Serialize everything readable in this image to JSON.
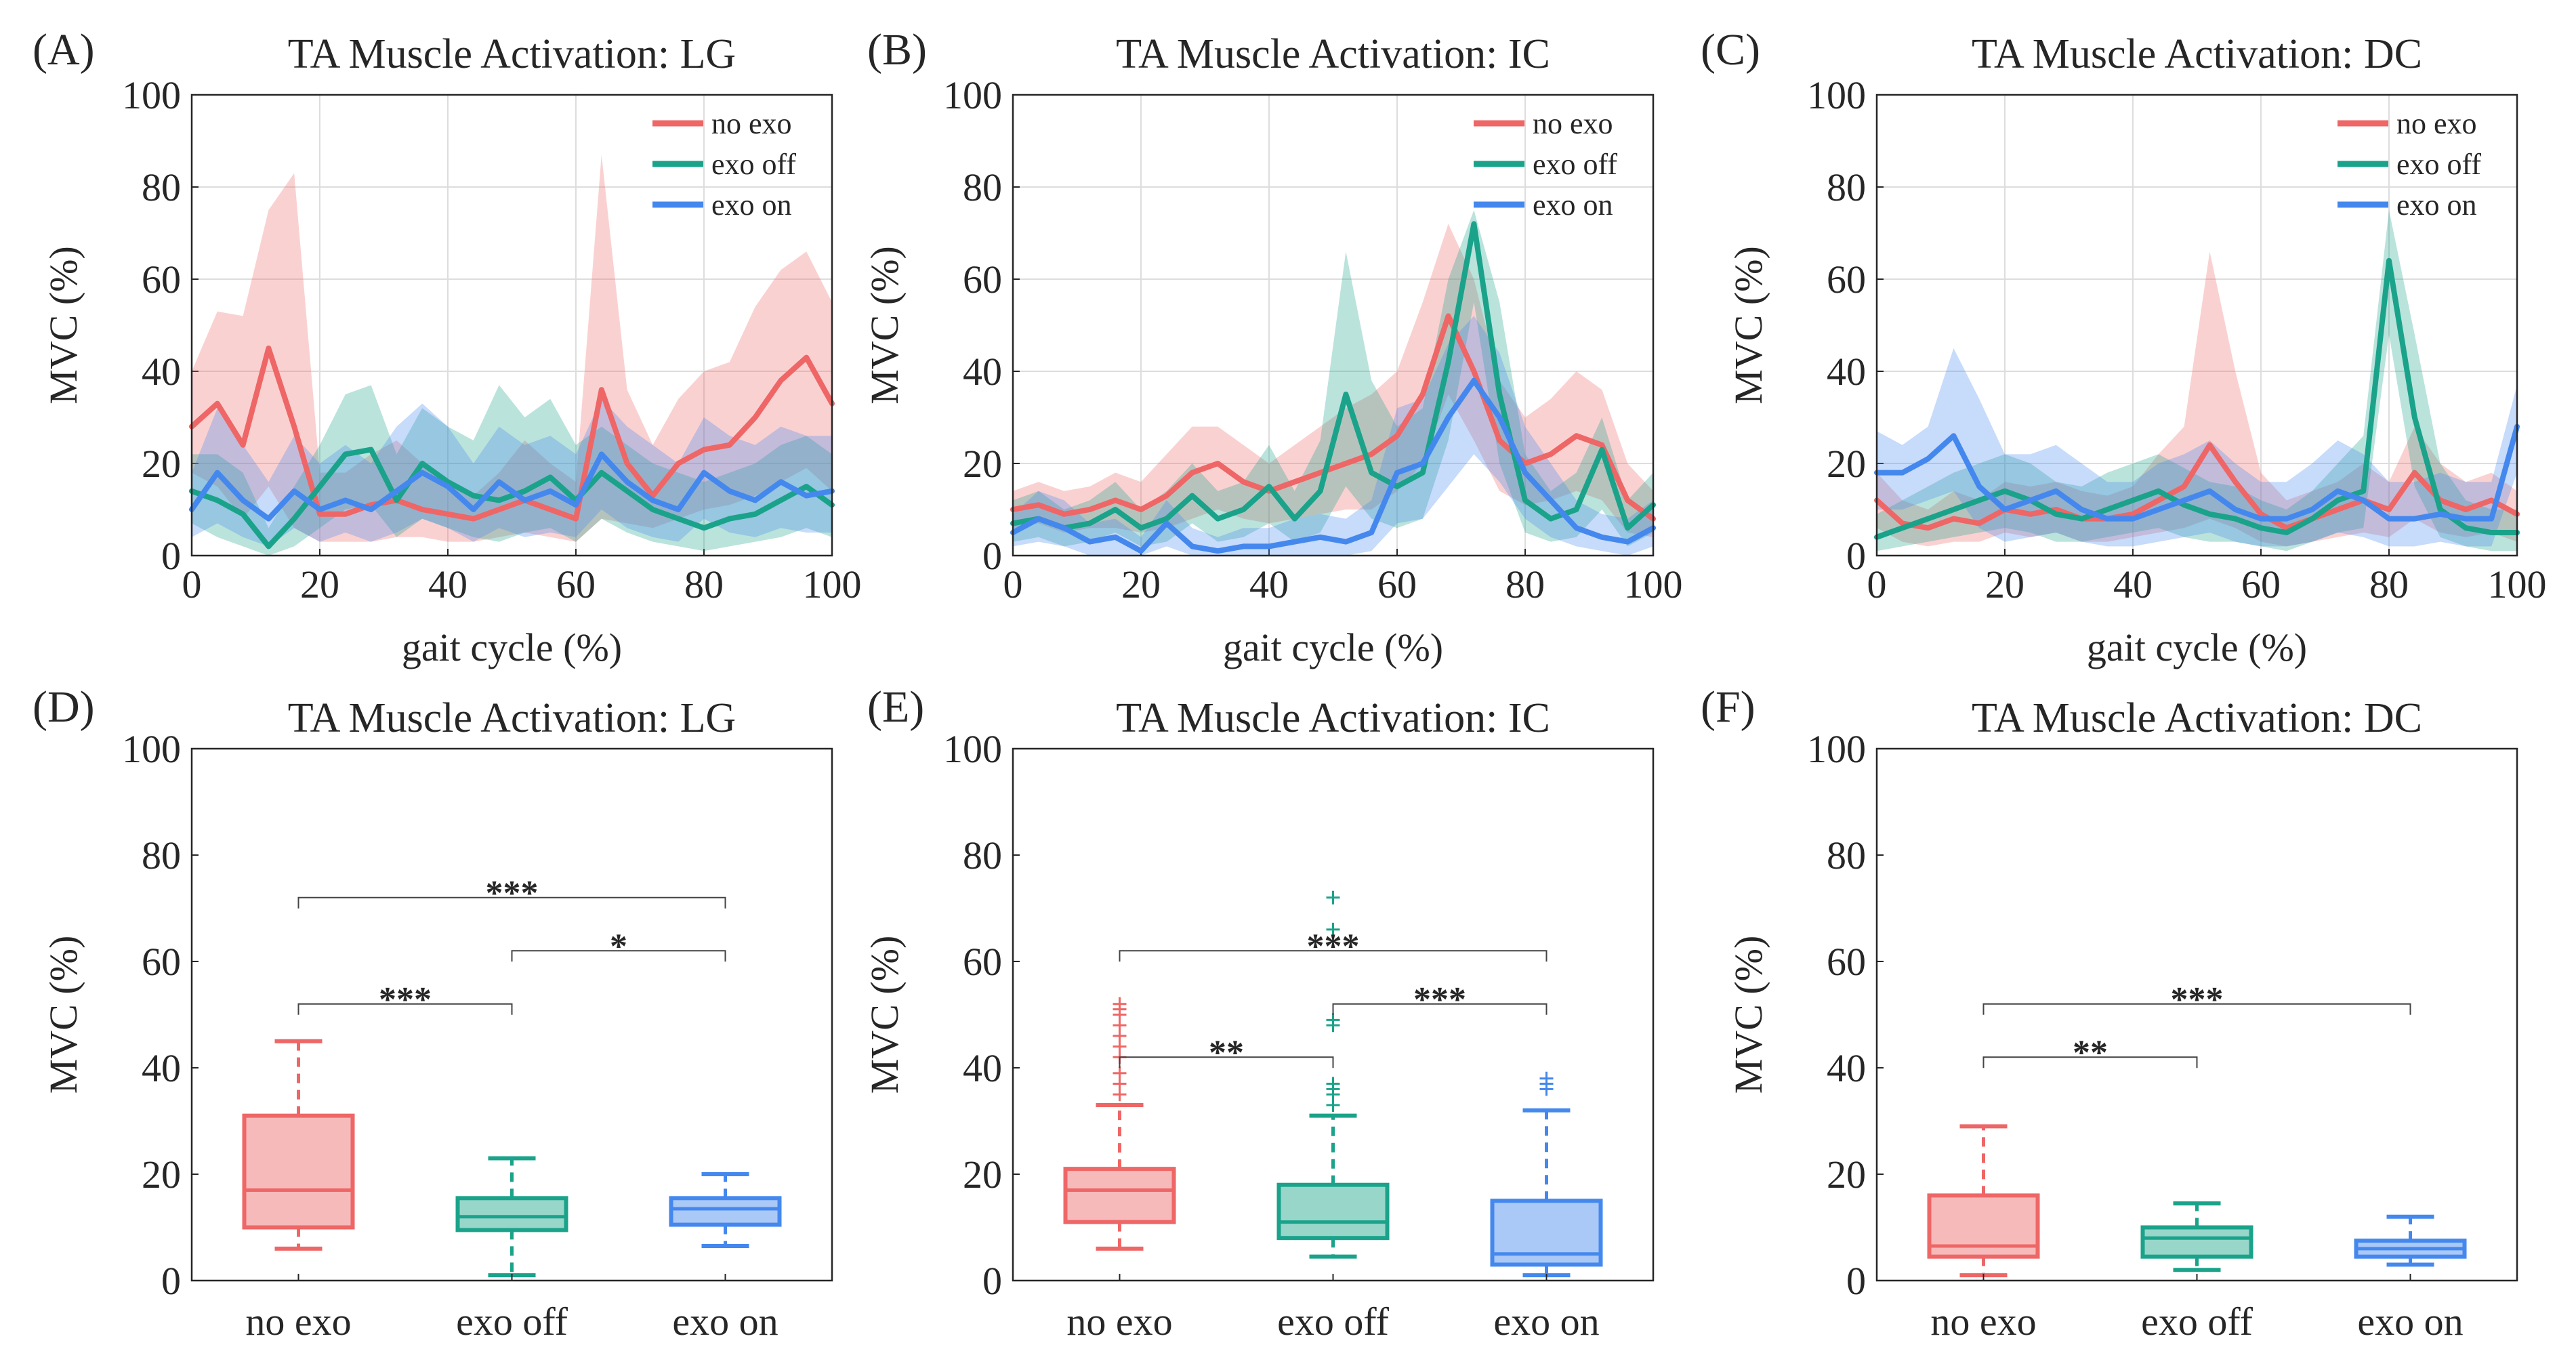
{
  "colors": {
    "no_exo": "#EE6666",
    "exo_off": "#1AA38A",
    "exo_on": "#4488EE",
    "axis": "#262626",
    "grid": "#DDDDDD"
  },
  "chart_data": [
    {
      "type": "line",
      "panel_label": "(A)",
      "title": "TA Muscle Activation: LG",
      "xlabel": "gait cycle (%)",
      "ylabel": "MVC (%)",
      "xlim": [
        0,
        100
      ],
      "ylim": [
        0,
        100
      ],
      "xticks": [
        "0",
        "20",
        "40",
        "60",
        "80",
        "100"
      ],
      "yticks": [
        "0",
        "20",
        "40",
        "60",
        "80",
        "100"
      ],
      "grid": true,
      "legend_position": "top-right",
      "x": [
        0,
        4,
        8,
        12,
        16,
        20,
        24,
        28,
        32,
        36,
        40,
        44,
        48,
        52,
        56,
        60,
        64,
        68,
        72,
        76,
        80,
        84,
        88,
        92,
        96,
        100
      ],
      "series": [
        {
          "name": "no exo",
          "values": [
            28,
            33,
            24,
            45,
            28,
            9,
            9,
            11,
            12,
            10,
            9,
            8,
            10,
            12,
            10,
            8,
            36,
            20,
            13,
            20,
            23,
            24,
            30,
            38,
            43,
            33
          ],
          "upper": [
            40,
            53,
            52,
            75,
            83,
            18,
            18,
            22,
            25,
            20,
            16,
            13,
            18,
            25,
            20,
            16,
            87,
            36,
            24,
            34,
            40,
            42,
            54,
            62,
            66,
            55
          ],
          "lower": [
            18,
            15,
            8,
            15,
            6,
            3,
            3,
            3,
            4,
            4,
            3,
            3,
            4,
            5,
            4,
            3,
            8,
            7,
            6,
            8,
            10,
            11,
            13,
            16,
            19,
            14
          ]
        },
        {
          "name": "exo off",
          "values": [
            14,
            12,
            9,
            2,
            8,
            15,
            22,
            23,
            12,
            20,
            16,
            13,
            12,
            14,
            17,
            12,
            18,
            14,
            10,
            8,
            6,
            8,
            9,
            12,
            15,
            11
          ],
          "upper": [
            22,
            22,
            18,
            6,
            15,
            24,
            35,
            37,
            22,
            32,
            28,
            25,
            37,
            30,
            34,
            24,
            28,
            24,
            20,
            18,
            16,
            18,
            20,
            24,
            26,
            22
          ],
          "lower": [
            7,
            4,
            2,
            0,
            2,
            6,
            10,
            11,
            4,
            8,
            6,
            4,
            3,
            5,
            6,
            3,
            8,
            5,
            3,
            2,
            1,
            2,
            3,
            4,
            6,
            4
          ]
        },
        {
          "name": "exo on",
          "values": [
            10,
            18,
            12,
            8,
            14,
            10,
            12,
            10,
            14,
            18,
            15,
            10,
            16,
            12,
            14,
            11,
            22,
            16,
            12,
            10,
            18,
            14,
            12,
            16,
            13,
            14
          ],
          "upper": [
            18,
            32,
            24,
            16,
            26,
            20,
            24,
            20,
            28,
            33,
            28,
            20,
            28,
            24,
            26,
            22,
            34,
            28,
            24,
            20,
            30,
            26,
            24,
            28,
            26,
            26
          ],
          "lower": [
            4,
            7,
            4,
            2,
            6,
            3,
            5,
            3,
            5,
            8,
            6,
            3,
            6,
            4,
            5,
            4,
            10,
            6,
            4,
            3,
            8,
            5,
            4,
            6,
            5,
            5
          ]
        }
      ]
    },
    {
      "type": "line",
      "panel_label": "(B)",
      "title": "TA Muscle Activation: IC",
      "xlabel": "gait cycle (%)",
      "ylabel": "MVC (%)",
      "xlim": [
        0,
        100
      ],
      "ylim": [
        0,
        100
      ],
      "xticks": [
        "0",
        "20",
        "40",
        "60",
        "80",
        "100"
      ],
      "yticks": [
        "0",
        "20",
        "40",
        "60",
        "80",
        "100"
      ],
      "grid": true,
      "legend_position": "top-right",
      "x": [
        0,
        4,
        8,
        12,
        16,
        20,
        24,
        28,
        32,
        36,
        40,
        44,
        48,
        52,
        56,
        60,
        64,
        68,
        72,
        76,
        80,
        84,
        88,
        92,
        96,
        100
      ],
      "series": [
        {
          "name": "no exo",
          "values": [
            10,
            11,
            9,
            10,
            12,
            10,
            13,
            18,
            20,
            16,
            14,
            16,
            18,
            20,
            22,
            26,
            35,
            52,
            40,
            25,
            20,
            22,
            26,
            24,
            12,
            8
          ],
          "upper": [
            14,
            16,
            14,
            15,
            18,
            16,
            22,
            28,
            28,
            24,
            20,
            24,
            28,
            32,
            35,
            40,
            55,
            72,
            60,
            38,
            30,
            34,
            40,
            36,
            20,
            14
          ],
          "lower": [
            6,
            7,
            5,
            6,
            6,
            5,
            6,
            8,
            10,
            8,
            7,
            8,
            9,
            10,
            10,
            14,
            20,
            35,
            25,
            14,
            11,
            12,
            14,
            12,
            5,
            4
          ]
        },
        {
          "name": "exo off",
          "values": [
            7,
            8,
            6,
            7,
            10,
            6,
            8,
            13,
            8,
            10,
            15,
            8,
            14,
            35,
            18,
            15,
            18,
            42,
            72,
            35,
            12,
            8,
            10,
            23,
            6,
            11
          ],
          "upper": [
            12,
            14,
            10,
            12,
            16,
            10,
            14,
            20,
            14,
            16,
            24,
            14,
            25,
            66,
            38,
            28,
            32,
            60,
            75,
            55,
            22,
            14,
            18,
            30,
            12,
            18
          ],
          "lower": [
            3,
            4,
            2,
            3,
            5,
            2,
            3,
            7,
            3,
            4,
            7,
            3,
            5,
            15,
            8,
            6,
            8,
            25,
            55,
            20,
            5,
            3,
            4,
            10,
            2,
            5
          ]
        },
        {
          "name": "exo on",
          "values": [
            5,
            8,
            6,
            3,
            4,
            1,
            7,
            2,
            1,
            2,
            2,
            3,
            4,
            3,
            5,
            18,
            20,
            30,
            38,
            30,
            18,
            12,
            6,
            4,
            3,
            6
          ],
          "upper": [
            9,
            14,
            12,
            7,
            8,
            4,
            12,
            6,
            4,
            6,
            6,
            8,
            9,
            8,
            12,
            32,
            34,
            46,
            52,
            44,
            28,
            20,
            12,
            9,
            8,
            12
          ],
          "lower": [
            2,
            3,
            2,
            0,
            0,
            0,
            2,
            0,
            0,
            0,
            0,
            0,
            0,
            0,
            1,
            7,
            8,
            15,
            22,
            16,
            8,
            4,
            2,
            1,
            0,
            2
          ]
        }
      ]
    },
    {
      "type": "line",
      "panel_label": "(C)",
      "title": "TA Muscle Activation: DC",
      "xlabel": "gait cycle (%)",
      "ylabel": "MVC (%)",
      "xlim": [
        0,
        100
      ],
      "ylim": [
        0,
        100
      ],
      "xticks": [
        "0",
        "20",
        "40",
        "60",
        "80",
        "100"
      ],
      "yticks": [
        "0",
        "20",
        "40",
        "60",
        "80",
        "100"
      ],
      "grid": true,
      "legend_position": "top-right",
      "x": [
        0,
        4,
        8,
        12,
        16,
        20,
        24,
        28,
        32,
        36,
        40,
        44,
        48,
        52,
        56,
        60,
        64,
        68,
        72,
        76,
        80,
        84,
        88,
        92,
        96,
        100
      ],
      "series": [
        {
          "name": "no exo",
          "values": [
            12,
            7,
            6,
            8,
            7,
            10,
            9,
            10,
            8,
            8,
            9,
            12,
            15,
            24,
            16,
            9,
            6,
            8,
            10,
            12,
            10,
            18,
            12,
            10,
            12,
            9
          ],
          "upper": [
            18,
            12,
            10,
            14,
            12,
            16,
            15,
            16,
            14,
            13,
            15,
            22,
            28,
            66,
            40,
            18,
            12,
            14,
            16,
            20,
            16,
            28,
            20,
            16,
            18,
            14
          ],
          "lower": [
            6,
            3,
            2,
            3,
            3,
            5,
            4,
            5,
            3,
            3,
            4,
            5,
            6,
            8,
            6,
            3,
            2,
            3,
            4,
            5,
            4,
            8,
            5,
            4,
            5,
            3
          ]
        },
        {
          "name": "exo off",
          "values": [
            4,
            6,
            8,
            10,
            12,
            14,
            12,
            9,
            8,
            10,
            12,
            14,
            11,
            9,
            8,
            6,
            5,
            8,
            12,
            14,
            64,
            30,
            10,
            6,
            5,
            5
          ],
          "upper": [
            9,
            12,
            15,
            18,
            20,
            22,
            20,
            16,
            15,
            18,
            20,
            22,
            19,
            16,
            15,
            12,
            10,
            14,
            20,
            26,
            75,
            48,
            20,
            12,
            10,
            10
          ],
          "lower": [
            1,
            2,
            3,
            4,
            5,
            6,
            5,
            3,
            3,
            4,
            5,
            6,
            4,
            3,
            3,
            2,
            1,
            3,
            5,
            6,
            48,
            15,
            4,
            2,
            1,
            1
          ]
        },
        {
          "name": "exo on",
          "values": [
            18,
            18,
            21,
            26,
            15,
            10,
            12,
            14,
            10,
            8,
            8,
            10,
            12,
            14,
            10,
            8,
            8,
            10,
            14,
            12,
            8,
            8,
            9,
            8,
            8,
            28
          ],
          "upper": [
            27,
            24,
            28,
            45,
            34,
            22,
            22,
            24,
            20,
            16,
            16,
            20,
            22,
            25,
            20,
            16,
            16,
            20,
            25,
            22,
            16,
            16,
            18,
            16,
            16,
            37
          ],
          "lower": [
            10,
            10,
            12,
            14,
            6,
            3,
            4,
            5,
            3,
            2,
            2,
            3,
            4,
            5,
            3,
            2,
            2,
            3,
            5,
            4,
            2,
            2,
            3,
            2,
            2,
            18
          ]
        }
      ]
    },
    {
      "type": "box",
      "panel_label": "(D)",
      "title": "TA Muscle Activation: LG",
      "xlabel": "",
      "ylabel": "MVC (%)",
      "ylim": [
        0,
        100
      ],
      "yticks": [
        "0",
        "20",
        "40",
        "60",
        "80",
        "100"
      ],
      "grid": false,
      "categories": [
        "no exo",
        "exo off",
        "exo on"
      ],
      "boxes": [
        {
          "name": "no exo",
          "whisker_low": 6,
          "q1": 10,
          "median": 17,
          "q3": 31,
          "whisker_high": 45,
          "outliers": []
        },
        {
          "name": "exo off",
          "whisker_low": 1,
          "q1": 9.5,
          "median": 12,
          "q3": 15.5,
          "whisker_high": 23,
          "outliers": []
        },
        {
          "name": "exo on",
          "whisker_low": 6.5,
          "q1": 10.5,
          "median": 13.5,
          "q3": 15.5,
          "whisker_high": 20,
          "outliers": []
        }
      ],
      "significance": [
        {
          "from": 0,
          "to": 1,
          "y": 52,
          "label": "***"
        },
        {
          "from": 0,
          "to": 2,
          "y": 72,
          "label": "***"
        },
        {
          "from": 1,
          "to": 2,
          "y": 62,
          "label": "*"
        }
      ]
    },
    {
      "type": "box",
      "panel_label": "(E)",
      "title": "TA Muscle Activation: IC",
      "xlabel": "",
      "ylabel": "MVC (%)",
      "ylim": [
        0,
        100
      ],
      "yticks": [
        "0",
        "20",
        "40",
        "60",
        "80",
        "100"
      ],
      "grid": false,
      "categories": [
        "no exo",
        "exo off",
        "exo on"
      ],
      "boxes": [
        {
          "name": "no exo",
          "whisker_low": 6,
          "q1": 11,
          "median": 17,
          "q3": 21,
          "whisker_high": 33,
          "outliers": [
            35,
            37,
            39,
            42,
            44,
            46,
            48,
            50,
            51,
            52
          ]
        },
        {
          "name": "exo off",
          "whisker_low": 4.5,
          "q1": 8,
          "median": 11,
          "q3": 18,
          "whisker_high": 31,
          "outliers": [
            33,
            35,
            36,
            37,
            48,
            49,
            66,
            72
          ]
        },
        {
          "name": "exo on",
          "whisker_low": 1,
          "q1": 3,
          "median": 5,
          "q3": 15,
          "whisker_high": 32,
          "outliers": [
            36,
            37,
            38
          ]
        }
      ],
      "significance": [
        {
          "from": 0,
          "to": 1,
          "y": 42,
          "label": "**"
        },
        {
          "from": 0,
          "to": 2,
          "y": 62,
          "label": "***"
        },
        {
          "from": 1,
          "to": 2,
          "y": 52,
          "label": "***"
        }
      ]
    },
    {
      "type": "box",
      "panel_label": "(F)",
      "title": "TA Muscle Activation: DC",
      "xlabel": "",
      "ylabel": "MVC (%)",
      "ylim": [
        0,
        100
      ],
      "yticks": [
        "0",
        "20",
        "40",
        "60",
        "80",
        "100"
      ],
      "grid": false,
      "categories": [
        "no exo",
        "exo off",
        "exo on"
      ],
      "boxes": [
        {
          "name": "no exo",
          "whisker_low": 1,
          "q1": 4.5,
          "median": 6.5,
          "q3": 16,
          "whisker_high": 29,
          "outliers": []
        },
        {
          "name": "exo off",
          "whisker_low": 2,
          "q1": 4.5,
          "median": 8,
          "q3": 10,
          "whisker_high": 14.5,
          "outliers": []
        },
        {
          "name": "exo on",
          "whisker_low": 3,
          "q1": 4.5,
          "median": 6,
          "q3": 7.5,
          "whisker_high": 12,
          "outliers": []
        }
      ],
      "significance": [
        {
          "from": 0,
          "to": 1,
          "y": 42,
          "label": "**"
        },
        {
          "from": 0,
          "to": 2,
          "y": 52,
          "label": "***"
        }
      ]
    }
  ]
}
